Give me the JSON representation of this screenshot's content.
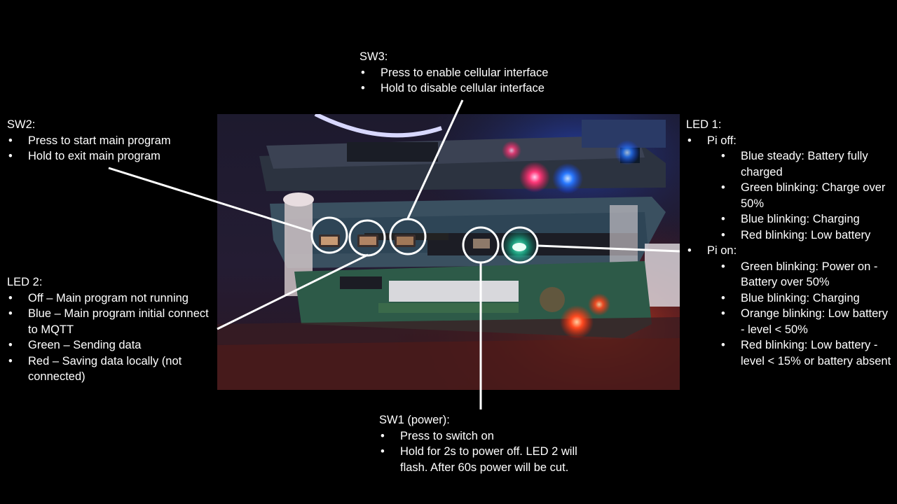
{
  "sw3": {
    "title": "SW3:",
    "items": [
      "Press to enable cellular interface",
      "Hold to disable cellular interface"
    ]
  },
  "sw2": {
    "title": "SW2:",
    "items": [
      "Press to start main program",
      "Hold to exit main program"
    ]
  },
  "led2": {
    "title": "LED 2:",
    "items": [
      "Off – Main program not running",
      "Blue – Main program initial connect to MQTT",
      "Green – Sending data",
      "Red – Saving data locally (not connected)"
    ]
  },
  "led1": {
    "title": "LED 1:",
    "groups": [
      {
        "label": "Pi off:",
        "items": [
          "Blue steady: Battery fully charged",
          "Green blinking: Charge over 50%",
          "Blue blinking: Charging",
          "Red blinking: Low battery"
        ]
      },
      {
        "label": "Pi on:",
        "items": [
          "Green blinking: Power on - Battery over 50%",
          "Blue blinking: Charging",
          "Orange blinking: Low battery - level < 50%",
          "Red blinking: Low battery - level < 15% or battery absent"
        ]
      }
    ]
  },
  "sw1": {
    "title": "SW1 (power):",
    "items": [
      "Press to switch on",
      "Hold for 2s to power off. LED 2 will flash. After 60s power will be cut."
    ]
  },
  "colors": {
    "background": "#000000",
    "text": "#ffffff",
    "callout": "#ffffff"
  }
}
